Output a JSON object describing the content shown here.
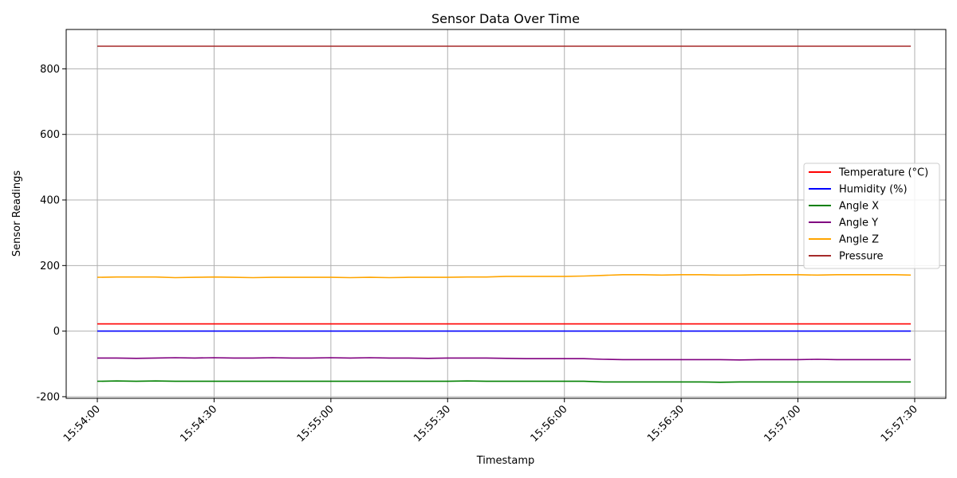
{
  "chart_data": {
    "type": "line",
    "title": "Sensor Data Over Time",
    "xlabel": "Timestamp",
    "ylabel": "Sensor Readings",
    "xlim": [
      "15:53:52",
      "15:57:38"
    ],
    "ylim": [
      -205,
      920
    ],
    "x_ticks": [
      "15:54:00",
      "15:54:30",
      "15:55:00",
      "15:55:30",
      "15:56:00",
      "15:56:30",
      "15:57:00",
      "15:57:30"
    ],
    "y_ticks": [
      -200,
      0,
      200,
      400,
      600,
      800
    ],
    "grid": true,
    "legend_position": "center-right",
    "x": [
      "15:54:00",
      "15:54:05",
      "15:54:10",
      "15:54:15",
      "15:54:20",
      "15:54:25",
      "15:54:30",
      "15:54:35",
      "15:54:40",
      "15:54:45",
      "15:54:50",
      "15:54:55",
      "15:55:00",
      "15:55:05",
      "15:55:10",
      "15:55:15",
      "15:55:20",
      "15:55:25",
      "15:55:30",
      "15:55:35",
      "15:55:40",
      "15:55:45",
      "15:55:50",
      "15:55:55",
      "15:56:00",
      "15:56:05",
      "15:56:10",
      "15:56:15",
      "15:56:20",
      "15:56:25",
      "15:56:30",
      "15:56:35",
      "15:56:40",
      "15:56:45",
      "15:56:50",
      "15:56:55",
      "15:57:00",
      "15:57:05",
      "15:57:10",
      "15:57:15",
      "15:57:20",
      "15:57:25",
      "15:57:29"
    ],
    "series": [
      {
        "name": "Temperature (°C)",
        "color": "#ff0000",
        "values": [
          22,
          22,
          22,
          22,
          22,
          22,
          22,
          22,
          22,
          22,
          22,
          22,
          22,
          22,
          22,
          22,
          22,
          22,
          22,
          22,
          22,
          22,
          22,
          22,
          22,
          22,
          22,
          22,
          22,
          22,
          22,
          22,
          22,
          22,
          22,
          22,
          22,
          22,
          22,
          22,
          22,
          22,
          22
        ]
      },
      {
        "name": "Humidity (%)",
        "color": "#0000ff",
        "values": [
          0,
          0,
          0,
          0,
          0,
          0,
          0,
          0,
          0,
          0,
          0,
          0,
          0,
          0,
          0,
          0,
          0,
          0,
          0,
          0,
          0,
          0,
          0,
          0,
          0,
          0,
          0,
          0,
          0,
          0,
          0,
          0,
          0,
          0,
          0,
          0,
          0,
          0,
          0,
          0,
          0,
          0,
          0
        ]
      },
      {
        "name": "Angle X",
        "color": "#008000",
        "values": [
          -153,
          -152,
          -153,
          -152,
          -153,
          -153,
          -153,
          -153,
          -153,
          -153,
          -153,
          -153,
          -153,
          -153,
          -153,
          -153,
          -153,
          -153,
          -153,
          -152,
          -153,
          -153,
          -153,
          -153,
          -153,
          -153,
          -155,
          -155,
          -155,
          -155,
          -155,
          -155,
          -156,
          -155,
          -155,
          -155,
          -155,
          -155,
          -155,
          -155,
          -155,
          -155,
          -155
        ]
      },
      {
        "name": "Angle Y",
        "color": "#800080",
        "values": [
          -82,
          -82,
          -83,
          -82,
          -81,
          -82,
          -81,
          -82,
          -82,
          -81,
          -82,
          -82,
          -81,
          -82,
          -81,
          -82,
          -82,
          -83,
          -82,
          -82,
          -82,
          -83,
          -84,
          -84,
          -84,
          -84,
          -86,
          -87,
          -87,
          -87,
          -87,
          -87,
          -87,
          -88,
          -87,
          -87,
          -87,
          -86,
          -87,
          -87,
          -87,
          -87,
          -87
        ]
      },
      {
        "name": "Angle Z",
        "color": "#ffa500",
        "values": [
          164,
          165,
          165,
          165,
          163,
          164,
          165,
          164,
          163,
          164,
          164,
          164,
          164,
          163,
          164,
          163,
          164,
          164,
          164,
          165,
          165,
          167,
          167,
          167,
          167,
          168,
          170,
          172,
          172,
          171,
          172,
          172,
          171,
          171,
          172,
          172,
          172,
          171,
          172,
          172,
          172,
          172,
          171
        ]
      },
      {
        "name": "Pressure",
        "color": "#a52a2a",
        "values": [
          869,
          869,
          869,
          869,
          869,
          869,
          869,
          869,
          869,
          869,
          869,
          869,
          869,
          869,
          869,
          869,
          869,
          869,
          869,
          869,
          869,
          869,
          869,
          869,
          869,
          869,
          869,
          869,
          869,
          869,
          869,
          869,
          869,
          869,
          869,
          869,
          869,
          869,
          869,
          869,
          869,
          869,
          869
        ]
      }
    ]
  }
}
